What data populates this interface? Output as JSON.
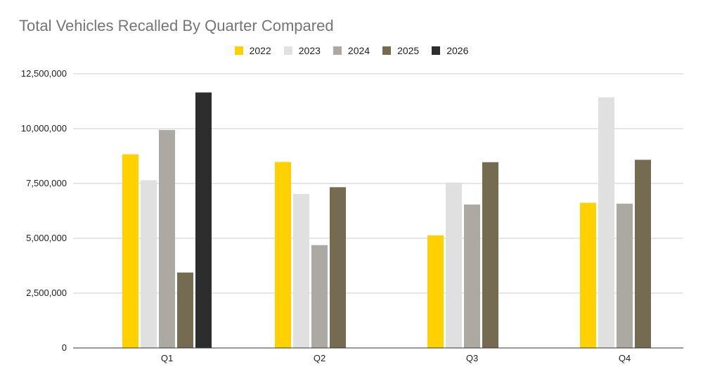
{
  "chart_data": {
    "type": "bar",
    "title": "Total Vehicles Recalled By Quarter Compared",
    "xlabel": "",
    "ylabel": "",
    "categories": [
      "Q1",
      "Q2",
      "Q3",
      "Q4"
    ],
    "series": [
      {
        "name": "2022",
        "color": "#FFD100",
        "values": [
          8830000,
          8480000,
          5130000,
          6620000
        ]
      },
      {
        "name": "2023",
        "color": "#E0E0E0",
        "values": [
          7650000,
          7020000,
          7540000,
          11430000
        ]
      },
      {
        "name": "2024",
        "color": "#ABA9A2",
        "values": [
          9940000,
          4690000,
          6540000,
          6580000
        ]
      },
      {
        "name": "2025",
        "color": "#746B50",
        "values": [
          3440000,
          7330000,
          8470000,
          8580000
        ]
      },
      {
        "name": "2026",
        "color": "#2D2D2D",
        "values": [
          11650000,
          null,
          null,
          null
        ]
      }
    ],
    "ylim": [
      0,
      12500000
    ],
    "yticks": [
      0,
      2500000,
      5000000,
      7500000,
      10000000,
      12500000
    ],
    "ytick_labels": [
      "0",
      "2,500,000",
      "5,000,000",
      "7,500,000",
      "10,000,000",
      "12,500,000"
    ],
    "grid": true,
    "legend_position": "top-center"
  }
}
